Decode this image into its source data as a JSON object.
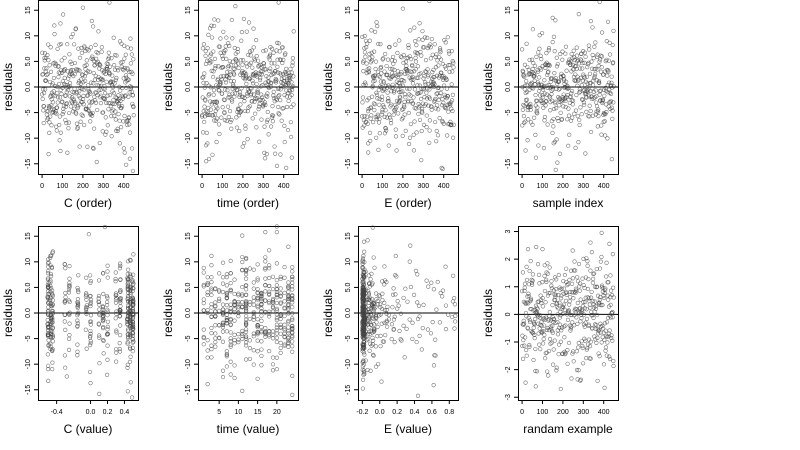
{
  "style": {
    "point_color": "#444444",
    "axis_color": "#000000",
    "ref_line_color": "#000000"
  },
  "chart_data": [
    {
      "type": "scatter",
      "xlabel": "C (order)",
      "ylabel": "residuals",
      "xlim": [
        -20,
        470
      ],
      "ylim": [
        -17,
        17
      ],
      "xticks": [
        0,
        100,
        200,
        300,
        400
      ],
      "xtick_labels": [
        "0",
        "100",
        "200",
        "300",
        "400"
      ],
      "yticks": [
        -15,
        -10,
        -5,
        0,
        5,
        10,
        15
      ],
      "ytick_labels": [
        "-15",
        "-10",
        "-5",
        "0.0",
        "5.0",
        "10",
        "15"
      ],
      "ref_line_y": 0,
      "generator": {
        "kind": "order",
        "n": 450,
        "sd": 5.2,
        "seed": 11
      },
      "points": [
        [
          330,
          16.5
        ],
        [
          200,
          15.5
        ],
        [
          445,
          -16.4
        ],
        [
          412,
          -15.2
        ],
        [
          90,
          -12.5
        ],
        [
          250,
          -11.9
        ]
      ]
    },
    {
      "type": "scatter",
      "xlabel": "time (order)",
      "ylabel": "residuals",
      "xlim": [
        -20,
        470
      ],
      "ylim": [
        -17,
        17
      ],
      "xticks": [
        0,
        100,
        200,
        300,
        400
      ],
      "xtick_labels": [
        "0",
        "100",
        "200",
        "300",
        "400"
      ],
      "yticks": [
        -15,
        -10,
        -5,
        0,
        5,
        10,
        15
      ],
      "ytick_labels": [
        "-15",
        "-10",
        "-5",
        "0.0",
        "5.0",
        "10",
        "15"
      ],
      "ref_line_y": 0,
      "generator": {
        "kind": "order",
        "n": 450,
        "sd": 5.2,
        "seed": 23
      },
      "points": [
        [
          375,
          16.5
        ],
        [
          60,
          13.2
        ],
        [
          412,
          -15.8
        ],
        [
          20,
          -14.5
        ],
        [
          440,
          -13.8
        ]
      ]
    },
    {
      "type": "scatter",
      "xlabel": "E (order)",
      "ylabel": "residuals",
      "xlim": [
        -20,
        470
      ],
      "ylim": [
        -17,
        17
      ],
      "xticks": [
        0,
        100,
        200,
        300,
        400
      ],
      "xtick_labels": [
        "0",
        "100",
        "200",
        "300",
        "400"
      ],
      "yticks": [
        -15,
        -10,
        -5,
        0,
        5,
        10,
        15
      ],
      "ytick_labels": [
        "-15",
        "-10",
        "-5",
        "0.0",
        "5.0",
        "10",
        "15"
      ],
      "ref_line_y": 0,
      "generator": {
        "kind": "order",
        "n": 450,
        "sd": 5.2,
        "seed": 37
      },
      "points": [
        [
          330,
          16.8
        ],
        [
          200,
          15.3
        ],
        [
          395,
          -16.0
        ],
        [
          290,
          -14.3
        ],
        [
          30,
          -12.8
        ]
      ]
    },
    {
      "type": "scatter",
      "xlabel": "sample index",
      "ylabel": "residuals",
      "xlim": [
        -20,
        470
      ],
      "ylim": [
        -17,
        17
      ],
      "xticks": [
        0,
        100,
        200,
        300,
        400
      ],
      "xtick_labels": [
        "0",
        "100",
        "200",
        "300",
        "400"
      ],
      "yticks": [
        -15,
        -10,
        -5,
        0,
        5,
        10,
        15
      ],
      "ytick_labels": [
        "-15",
        "-10",
        "-5",
        "0.0",
        "5.0",
        "10",
        "15"
      ],
      "ref_line_y": 0,
      "generator": {
        "kind": "order",
        "n": 450,
        "sd": 5.2,
        "seed": 53
      },
      "points": [
        [
          380,
          16.6
        ],
        [
          150,
          13.5
        ],
        [
          165,
          -16.2
        ],
        [
          440,
          -14.1
        ],
        [
          310,
          -13.0
        ]
      ]
    },
    {
      "type": "scatter",
      "xlabel": "C (value)",
      "ylabel": "residuals",
      "xlim": [
        -0.62,
        0.56
      ],
      "ylim": [
        -17,
        17
      ],
      "xticks": [
        -0.4,
        0.0,
        0.2,
        0.4
      ],
      "xtick_labels": [
        "-0.4",
        "0.0",
        "0.2",
        "0.4"
      ],
      "yticks": [
        -15,
        -10,
        -5,
        0,
        5,
        10,
        15
      ],
      "ytick_labels": [
        "-15",
        "-10",
        "-5",
        "0.0",
        "5.0",
        "10",
        "15"
      ],
      "ref_line_y": 0,
      "generator": {
        "kind": "value-c",
        "n": 450,
        "sd": 5.0,
        "seed": 71
      },
      "points": [
        [
          0.17,
          16.8
        ],
        [
          -0.02,
          15.4
        ],
        [
          0.49,
          -16.5
        ],
        [
          0.44,
          -15.3
        ],
        [
          -0.28,
          -12.4
        ]
      ]
    },
    {
      "type": "scatter",
      "xlabel": "time (value)",
      "ylabel": "residuals",
      "xlim": [
        -0.5,
        25.5
      ],
      "ylim": [
        -17,
        17
      ],
      "xticks": [
        5,
        10,
        15,
        20
      ],
      "xtick_labels": [
        "5",
        "10",
        "15",
        "20"
      ],
      "yticks": [
        -15,
        -10,
        -5,
        0,
        5,
        10,
        15
      ],
      "ytick_labels": [
        "-15",
        "-10",
        "-5",
        "0.0",
        "5.0",
        "10",
        "15"
      ],
      "ref_line_y": 0,
      "generator": {
        "kind": "value-time",
        "n": 450,
        "sd": 5.0,
        "seed": 89
      },
      "points": [
        [
          20,
          16.9
        ],
        [
          17,
          15.8
        ],
        [
          24,
          -16.0
        ],
        [
          2,
          -13.9
        ],
        [
          9,
          -12.7
        ]
      ]
    },
    {
      "type": "scatter",
      "xlabel": "E (value)",
      "ylabel": "residuals",
      "xlim": [
        -0.25,
        0.9
      ],
      "ylim": [
        -17,
        17
      ],
      "xticks": [
        -0.2,
        0.0,
        0.2,
        0.4,
        0.6,
        0.8
      ],
      "xtick_labels": [
        "-0.2",
        "0.0",
        "0.2",
        "0.4",
        "0.6",
        "0.8"
      ],
      "yticks": [
        -15,
        -10,
        -5,
        0,
        5,
        10,
        15
      ],
      "ytick_labels": [
        "-15",
        "-10",
        "-5",
        "0.0",
        "5.0",
        "10",
        "15"
      ],
      "ref_line_y": 0,
      "generator": {
        "kind": "value-e",
        "n": 450,
        "sd": 5.0,
        "seed": 97
      },
      "points": [
        [
          -0.08,
          16.7
        ],
        [
          -0.14,
          14.2
        ],
        [
          0.44,
          -16.2
        ],
        [
          0.62,
          -14.1
        ],
        [
          0.02,
          -13.4
        ]
      ]
    },
    {
      "type": "scatter",
      "xlabel": "randam example",
      "ylabel": "residuals",
      "xlim": [
        -20,
        470
      ],
      "ylim": [
        -3.1,
        3.2
      ],
      "xticks": [
        0,
        100,
        200,
        300,
        400
      ],
      "xtick_labels": [
        "0",
        "100",
        "200",
        "300",
        "400"
      ],
      "yticks": [
        -3,
        -2,
        -1,
        0,
        1,
        2,
        3
      ],
      "ytick_labels": [
        "-3",
        "-2",
        "-1",
        "0",
        "1",
        "2",
        "3"
      ],
      "ref_line_y": 0,
      "generator": {
        "kind": "order",
        "n": 450,
        "sd": 1.0,
        "seed": 131
      },
      "points": [
        [
          390,
          2.95
        ],
        [
          335,
          2.6
        ],
        [
          285,
          -2.4
        ],
        [
          190,
          -2.7
        ],
        [
          65,
          -2.05
        ]
      ]
    }
  ]
}
